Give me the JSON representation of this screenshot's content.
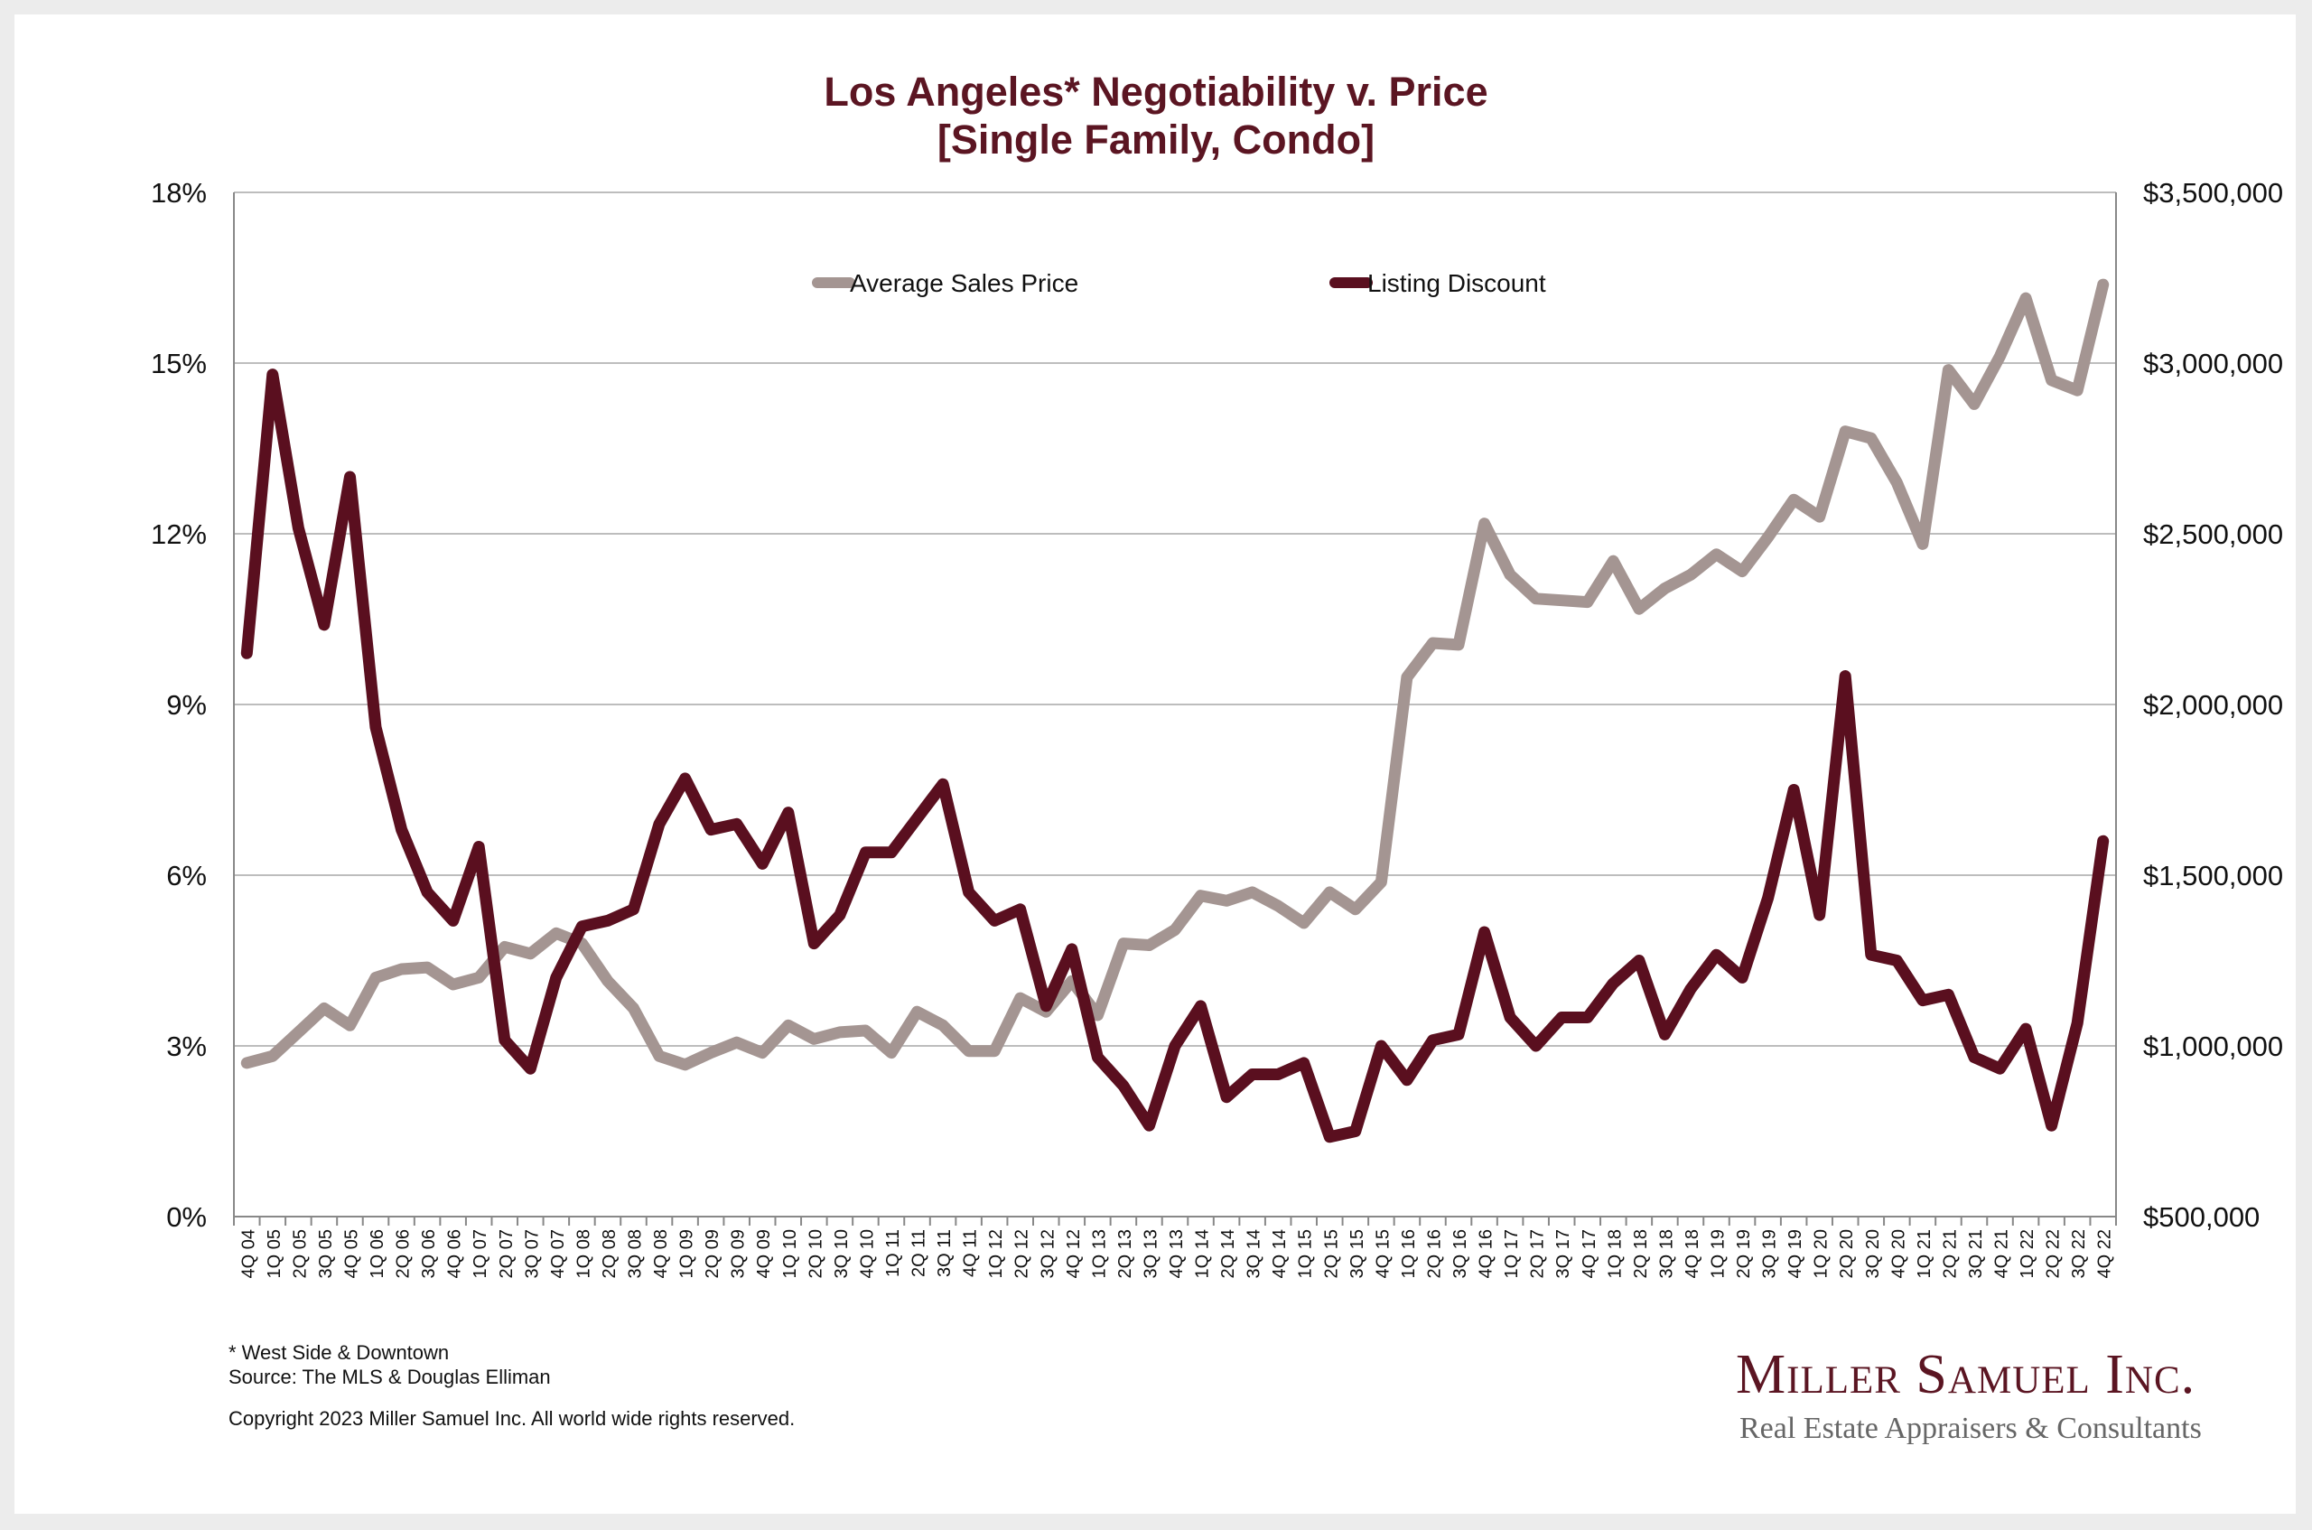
{
  "colors": {
    "price": "#a49592",
    "discount": "#5a0f1f",
    "title": "#5b1522",
    "grid": "#bdbdbd"
  },
  "footnotes": {
    "area": "* West Side & Downtown",
    "source": "Source: The MLS & Douglas Elliman",
    "copyright": "Copyright 2023 Miller Samuel Inc.  All world wide rights reserved."
  },
  "logo": {
    "name": "Miller Samuel Inc.",
    "tagline": "Real Estate Appraisers & Consultants"
  },
  "chart_data": {
    "type": "line",
    "title": "Los Angeles* Negotiability v. Price",
    "subtitle": "[Single Family, Condo]",
    "legend_position": "top",
    "grid": true,
    "y_left": {
      "ticks": [
        "0%",
        "3%",
        "6%",
        "9%",
        "12%",
        "15%",
        "18%"
      ],
      "range": [
        0,
        18
      ],
      "unit": "%"
    },
    "y_right": {
      "ticks": [
        "$500,000",
        "$1,000,000",
        "$1,500,000",
        "$2,000,000",
        "$2,500,000",
        "$3,000,000",
        "$3,500,000"
      ],
      "range": [
        500000,
        3500000
      ]
    },
    "categories": [
      "4Q 04",
      "1Q 05",
      "2Q 05",
      "3Q 05",
      "4Q 05",
      "1Q 06",
      "2Q 06",
      "3Q 06",
      "4Q 06",
      "1Q 07",
      "2Q 07",
      "3Q 07",
      "4Q 07",
      "1Q 08",
      "2Q 08",
      "3Q 08",
      "4Q 08",
      "1Q 09",
      "2Q 09",
      "3Q 09",
      "4Q 09",
      "1Q 10",
      "2Q 10",
      "3Q 10",
      "4Q 10",
      "1Q 11",
      "2Q 11",
      "3Q 11",
      "4Q 11",
      "1Q 12",
      "2Q 12",
      "3Q 12",
      "4Q 12",
      "1Q 13",
      "2Q 13",
      "3Q 13",
      "4Q 13",
      "1Q 14",
      "2Q 14",
      "3Q 14",
      "4Q 14",
      "1Q 15",
      "2Q 15",
      "3Q 15",
      "4Q 15",
      "1Q 16",
      "2Q 16",
      "3Q 16",
      "4Q 16",
      "1Q 17",
      "2Q 17",
      "3Q 17",
      "4Q 17",
      "1Q 18",
      "2Q 18",
      "3Q 18",
      "4Q 18",
      "1Q 19",
      "2Q 19",
      "3Q 19",
      "4Q 19",
      "1Q 20",
      "2Q 20",
      "3Q 20",
      "4Q 20",
      "1Q 21",
      "2Q 21",
      "3Q 21",
      "4Q 21",
      "1Q 22",
      "2Q 22",
      "3Q 22",
      "4Q 22"
    ],
    "series": [
      {
        "name": "Average Sales Price",
        "axis": "right",
        "values": [
          950000,
          970000,
          1040000,
          1110000,
          1060000,
          1200000,
          1225000,
          1230000,
          1180000,
          1200000,
          1290000,
          1270000,
          1330000,
          1300000,
          1190000,
          1110000,
          970000,
          945000,
          980000,
          1010000,
          980000,
          1060000,
          1020000,
          1040000,
          1045000,
          980000,
          1100000,
          1060000,
          985000,
          985000,
          1140000,
          1100000,
          1190000,
          1090000,
          1300000,
          1295000,
          1340000,
          1440000,
          1425000,
          1450000,
          1410000,
          1360000,
          1450000,
          1400000,
          1480000,
          2080000,
          2180000,
          2175000,
          2530000,
          2380000,
          2310000,
          2305000,
          2300000,
          2420000,
          2280000,
          2340000,
          2380000,
          2440000,
          2390000,
          2490000,
          2600000,
          2550000,
          2800000,
          2780000,
          2650000,
          2470000,
          2980000,
          2880000,
          3020000,
          3190000,
          2950000,
          2920000,
          3230000
        ]
      },
      {
        "name": "Listing Discount",
        "axis": "left",
        "values": [
          9.9,
          14.8,
          12.1,
          10.4,
          13.0,
          8.6,
          6.8,
          5.7,
          5.2,
          6.5,
          3.1,
          2.6,
          4.2,
          5.1,
          5.2,
          5.4,
          6.9,
          7.7,
          6.8,
          6.9,
          6.2,
          7.1,
          4.8,
          5.3,
          6.4,
          6.4,
          7.0,
          7.6,
          5.7,
          5.2,
          5.4,
          3.7,
          4.7,
          2.8,
          2.3,
          1.6,
          3.0,
          3.7,
          2.1,
          2.5,
          2.5,
          2.7,
          1.4,
          1.5,
          3.0,
          2.4,
          3.1,
          3.2,
          5.0,
          3.5,
          3.0,
          3.5,
          3.5,
          4.1,
          4.5,
          3.2,
          4.0,
          4.6,
          4.2,
          5.6,
          7.5,
          5.3,
          9.5,
          4.6,
          4.5,
          3.8,
          3.9,
          2.8,
          2.6,
          3.3,
          1.6,
          3.4,
          6.6
        ]
      }
    ]
  }
}
